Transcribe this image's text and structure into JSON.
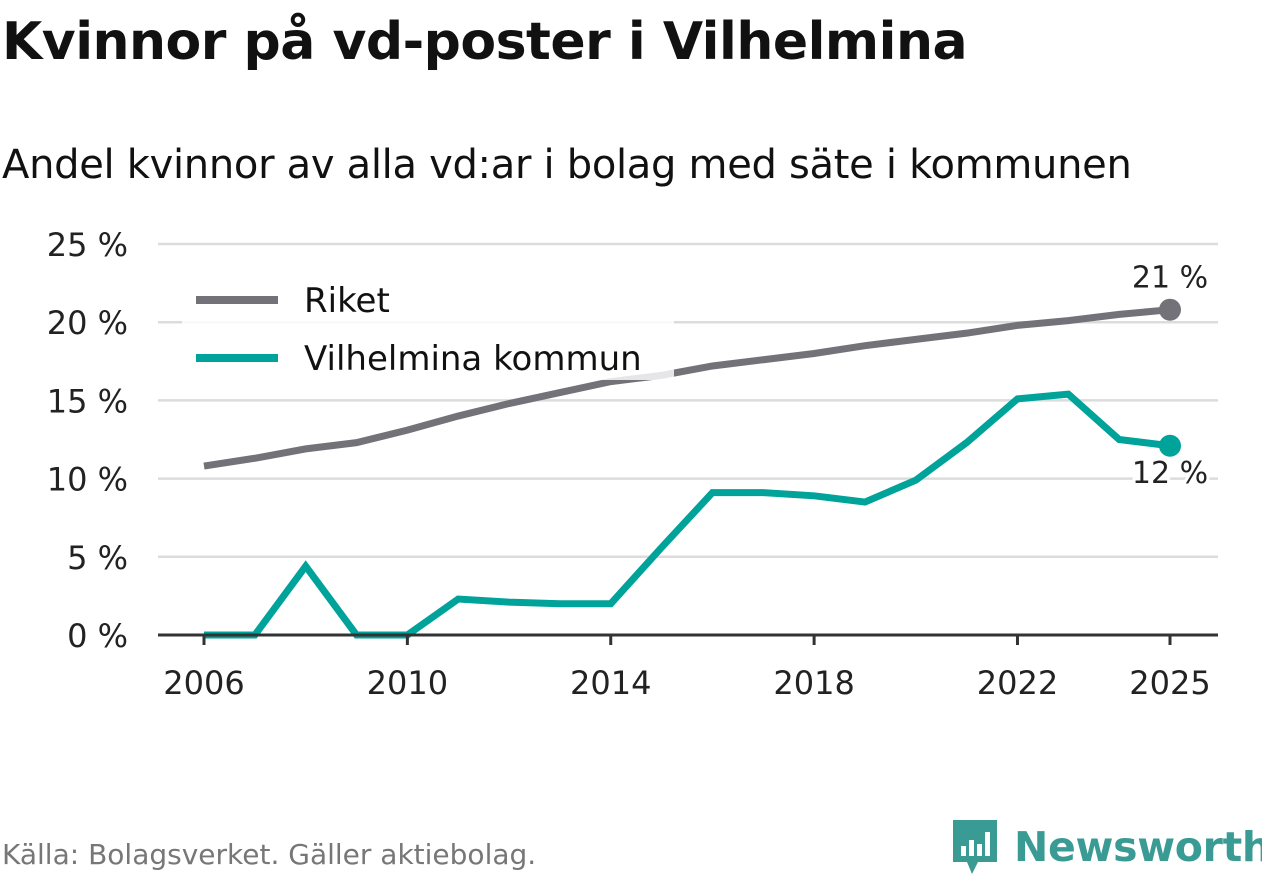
{
  "title": "Kvinnor på vd-poster i Vilhelmina",
  "subtitle": "Andel kvinnor av alla vd:ar i bolag med säte i kommunen",
  "source": "Källa: Bolagsverket. Gäller aktiebolag.",
  "brand": "Newsworthy",
  "chart_data": {
    "type": "line",
    "title": "Kvinnor på vd-poster i Vilhelmina",
    "xlabel": "",
    "ylabel": "",
    "x": [
      2006,
      2007,
      2008,
      2009,
      2010,
      2011,
      2012,
      2013,
      2014,
      2015,
      2016,
      2017,
      2018,
      2019,
      2020,
      2021,
      2022,
      2023,
      2024,
      2025
    ],
    "xticks": [
      2006,
      2010,
      2014,
      2018,
      2022,
      2025
    ],
    "xtick_labels": [
      "2006",
      "2010",
      "2014",
      "2018",
      "2022",
      "2025"
    ],
    "ylim": [
      0,
      25
    ],
    "yticks": [
      0,
      5,
      10,
      15,
      20,
      25
    ],
    "ytick_labels": [
      "0 %",
      "5 %",
      "10 %",
      "15 %",
      "20 %",
      "25 %"
    ],
    "grid": true,
    "legend_position": "top-left",
    "series": [
      {
        "name": "Riket",
        "color": "#737278",
        "values": [
          10.8,
          11.3,
          11.9,
          12.3,
          13.1,
          14.0,
          14.8,
          15.5,
          16.2,
          16.6,
          17.2,
          17.6,
          18.0,
          18.5,
          18.9,
          19.3,
          19.8,
          20.1,
          20.5,
          20.8
        ],
        "end_label": "21 %"
      },
      {
        "name": "Vilhelmina kommun",
        "color": "#00a39a",
        "values": [
          0,
          0,
          4.4,
          0,
          0,
          2.3,
          2.1,
          2.0,
          2.0,
          5.6,
          9.1,
          9.1,
          8.9,
          8.5,
          9.9,
          12.3,
          15.1,
          15.4,
          12.5,
          12.1
        ],
        "end_label": "12 %"
      }
    ]
  }
}
